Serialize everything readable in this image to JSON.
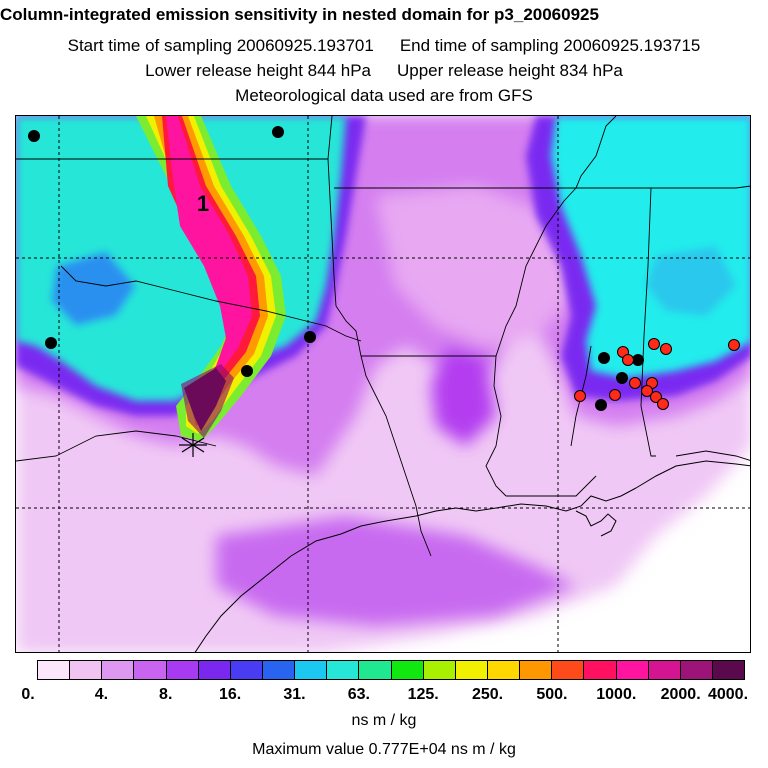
{
  "header": {
    "title": "Column-integrated emission sensitivity in nested domain for p3_20060925",
    "start_label": "Start time of sampling 20060925.193701",
    "end_label": "End time of sampling 20060925.193715",
    "lower_label": "Lower release height  844 hPa",
    "upper_label": "Upper release height  834 hPa",
    "met_label": "Meteorological data used are from GFS"
  },
  "map": {
    "plume_label": "1",
    "colors": {
      "background": "#ffffff",
      "light_violet": "#f0c8f5",
      "violet": "#d47ef0",
      "purple": "#b43cf0",
      "blue_violet": "#7a2cf0",
      "cyan": "#22ecec",
      "aqua": "#40e0d0",
      "yellow": "#f0f000",
      "orange": "#ff9a00",
      "red": "#ff1a3c",
      "magenta": "#ff14a0",
      "dark_purple": "#3a0a3c",
      "fire_marker": "#ff2a1a",
      "city_marker": "#000000"
    }
  },
  "colorbar": {
    "colors": [
      "#fbe6fb",
      "#f0c3f3",
      "#df98f2",
      "#c864f0",
      "#a83af2",
      "#7a28f0",
      "#4a3cf2",
      "#2864f0",
      "#1cc8f0",
      "#26e6d8",
      "#20e890",
      "#10e810",
      "#a8f000",
      "#f0f000",
      "#ffd800",
      "#ff9800",
      "#ff4a1a",
      "#ff1060",
      "#ff14a0",
      "#d41490",
      "#9c1478",
      "#5a0a4c"
    ],
    "tick_labels": [
      "0.",
      "4.",
      "8.",
      "16.",
      "31.",
      "63.",
      "125.",
      "250.",
      "500.",
      "1000.",
      "2000.",
      "4000."
    ],
    "units": "ns m / kg",
    "max_value_label": "Maximum value  0.777E+04 ns m / kg"
  }
}
